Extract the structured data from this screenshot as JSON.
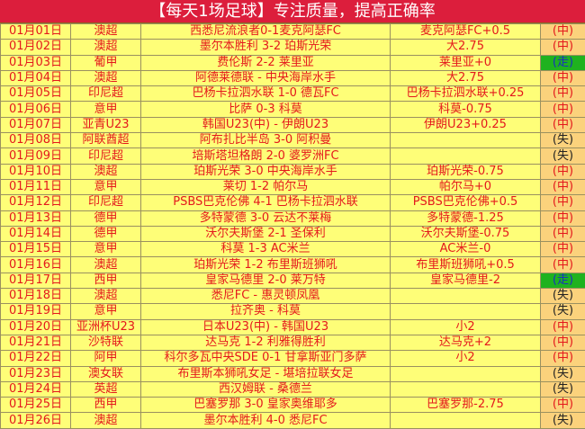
{
  "title": "【每天1场足球】专注质量，提高正确率",
  "colors": {
    "header_bg": "#dc1e3c",
    "row_bg": "#fefe78",
    "text": "#e4181c",
    "result_bg": "#fbd27c",
    "push_bg": "#1fb21f"
  },
  "rows": [
    {
      "date": "01月01日",
      "league": "澳超",
      "match": "西悉尼流浪者0-1麦克阿瑟FC",
      "pick": "麦克阿瑟FC+0.5",
      "result": "(中)"
    },
    {
      "date": "01月02日",
      "league": "澳超",
      "match": "墨尔本胜利 3-2 珀斯光荣",
      "pick": "大2.75",
      "result": "(中)"
    },
    {
      "date": "01月03日",
      "league": "葡甲",
      "match": "费伦斯 2-2 莱里亚",
      "pick": "莱里亚+0",
      "result": "(走)"
    },
    {
      "date": "01月04日",
      "league": "澳超",
      "match": "阿德莱德联 - 中央海岸水手",
      "pick": "大2.75",
      "result": "(中)"
    },
    {
      "date": "01月05日",
      "league": "印尼超",
      "match": "巴杨卡拉泗水联 1-0 德瓦FC",
      "pick": "巴杨卡拉泗水联+0.25",
      "result": "(中)"
    },
    {
      "date": "01月06日",
      "league": "意甲",
      "match": "比萨 0-3 科莫",
      "pick": "科莫-0.75",
      "result": "(中)"
    },
    {
      "date": "01月07日",
      "league": "亚青U23",
      "match": "韩国U23(中) - 伊朗U23",
      "pick": "伊朗U23+0.25",
      "result": "(中)"
    },
    {
      "date": "01月08日",
      "league": "阿联酋超",
      "match": "阿布扎比半岛 3-0 阿积曼",
      "pick": "",
      "result": "(失)"
    },
    {
      "date": "01月09日",
      "league": "印尼超",
      "match": "培斯塔坦格朗 2-0 婆罗洲FC",
      "pick": "",
      "result": "(失)"
    },
    {
      "date": "01月10日",
      "league": "澳超",
      "match": "珀斯光荣 3-0 中央海岸水手",
      "pick": "珀斯光荣-0.75",
      "result": "(中)"
    },
    {
      "date": "01月11日",
      "league": "意甲",
      "match": "莱切 1-2 帕尔马",
      "pick": "帕尔马+0",
      "result": "(中)"
    },
    {
      "date": "01月12日",
      "league": "印尼超",
      "match": "PSBS巴克伦佛 4-1 巴杨卡拉泗水联",
      "pick": "PSBS巴克伦佛+0.5",
      "result": "(中)"
    },
    {
      "date": "01月13日",
      "league": "德甲",
      "match": "多特蒙德 3-0 云达不莱梅",
      "pick": "多特蒙德-1.25",
      "result": "(中)"
    },
    {
      "date": "01月14日",
      "league": "德甲",
      "match": "沃尔夫斯堡 2-1 圣保利",
      "pick": "沃尔夫斯堡-0.75",
      "result": "(中)"
    },
    {
      "date": "01月15日",
      "league": "意甲",
      "match": "科莫 1-3 AC米兰",
      "pick": "AC米兰-0",
      "result": "(中)"
    },
    {
      "date": "01月16日",
      "league": "澳超",
      "match": "珀斯光荣 1-2 布里斯班狮吼",
      "pick": "布里斯班狮吼+0.5",
      "result": "(中)"
    },
    {
      "date": "01月17日",
      "league": "西甲",
      "match": "皇家马德里 2-0 莱万特",
      "pick": "皇家马德里-2",
      "result": "(走)"
    },
    {
      "date": "01月18日",
      "league": "澳超",
      "match": "悉尼FC - 惠灵顿凤凰",
      "pick": "",
      "result": "(失)"
    },
    {
      "date": "01月19日",
      "league": "意甲",
      "match": "拉齐奥 - 科莫",
      "pick": "",
      "result": "(失)"
    },
    {
      "date": "01月20日",
      "league": "亚洲杯U23",
      "match": "日本U23(中) - 韩国U23",
      "pick": "小2",
      "result": "(中)"
    },
    {
      "date": "01月21日",
      "league": "沙特联",
      "match": "达马克 1-2 利雅得胜利",
      "pick": "达马克+2",
      "result": "(中)"
    },
    {
      "date": "01月22日",
      "league": "阿甲",
      "match": "科尔多瓦中央SDE 0-1 甘拿斯亚门多萨",
      "pick": "小2",
      "result": "(中)"
    },
    {
      "date": "01月23日",
      "league": "澳女联",
      "match": "布里斯本狮吼女足 - 堪培拉联女足",
      "pick": "",
      "result": "(失)"
    },
    {
      "date": "01月24日",
      "league": "英超",
      "match": "西汉姆联 - 桑德兰",
      "pick": "",
      "result": "(失)"
    },
    {
      "date": "01月25日",
      "league": "西甲",
      "match": "巴塞罗那 3-0 皇家奥维耶多",
      "pick": "巴塞罗那-2.75",
      "result": "(中)"
    },
    {
      "date": "01月26日",
      "league": "澳超",
      "match": "墨尔本胜利 4-0 悉尼FC",
      "pick": "",
      "result": "(失)"
    }
  ]
}
